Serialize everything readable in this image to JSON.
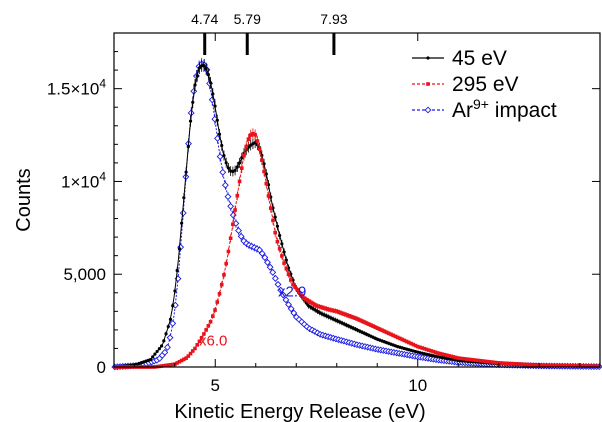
{
  "chart_data": {
    "type": "line",
    "xlabel": "Kinetic Energy Release (eV)",
    "ylabel": "Counts",
    "xlim": [
      2.5,
      14.5
    ],
    "ylim": [
      0,
      18000
    ],
    "xticks": [
      {
        "value": 5,
        "label": "5"
      },
      {
        "value": 10,
        "label": "10"
      }
    ],
    "yticks": [
      {
        "value": 0,
        "label": "0"
      },
      {
        "value": 5000,
        "label": "5,000"
      },
      {
        "value": 10000,
        "label": "1×10",
        "exp": "4"
      },
      {
        "value": 15000,
        "label": "1.5×10",
        "exp": "4"
      }
    ],
    "top_markers": [
      {
        "value": 4.74,
        "label": "4.74"
      },
      {
        "value": 5.79,
        "label": "5.79"
      },
      {
        "value": 7.93,
        "label": "7.93"
      }
    ],
    "series": [
      {
        "name": "45 eV",
        "color": "#000000",
        "marker": "filled-dot",
        "x": [
          2.5,
          3.0,
          3.4,
          3.7,
          3.9,
          4.0,
          4.1,
          4.2,
          4.3,
          4.4,
          4.5,
          4.6,
          4.7,
          4.8,
          4.9,
          5.0,
          5.1,
          5.2,
          5.3,
          5.4,
          5.5,
          5.6,
          5.7,
          5.8,
          5.9,
          6.0,
          6.1,
          6.2,
          6.3,
          6.4,
          6.6,
          6.8,
          7.0,
          7.3,
          7.6,
          8.0,
          8.5,
          9.0,
          9.5,
          10.0,
          10.5,
          11.0,
          12.0,
          13.0,
          14.5
        ],
        "y": [
          0,
          100,
          400,
          1200,
          2600,
          4000,
          6000,
          8500,
          11000,
          13500,
          15200,
          16100,
          16300,
          16000,
          15200,
          14000,
          12600,
          11500,
          10800,
          10500,
          10600,
          11000,
          11500,
          11800,
          12000,
          12100,
          11800,
          11000,
          10000,
          8800,
          7000,
          5400,
          4200,
          3300,
          2900,
          2500,
          2000,
          1500,
          1100,
          800,
          550,
          350,
          180,
          90,
          30
        ]
      },
      {
        "name": "295 eV",
        "color": "#e8141b",
        "marker": "filled-square",
        "x": [
          2.5,
          3.5,
          4.0,
          4.3,
          4.5,
          4.7,
          4.9,
          5.0,
          5.1,
          5.2,
          5.3,
          5.4,
          5.5,
          5.6,
          5.7,
          5.8,
          5.9,
          6.0,
          6.1,
          6.2,
          6.3,
          6.4,
          6.5,
          6.7,
          6.9,
          7.2,
          7.5,
          7.8,
          8.0,
          8.5,
          9.0,
          9.5,
          10.0,
          10.5,
          11.0,
          12.0,
          13.0,
          14.5
        ],
        "y": [
          0,
          0,
          150,
          500,
          1000,
          1700,
          2500,
          3100,
          3900,
          4800,
          5900,
          7200,
          8600,
          10000,
          11300,
          12200,
          12600,
          12500,
          11700,
          10600,
          9400,
          8200,
          7000,
          5600,
          4500,
          3700,
          3300,
          3100,
          3000,
          2600,
          2100,
          1600,
          1100,
          750,
          480,
          220,
          100,
          40
        ]
      },
      {
        "name": "Ar",
        "name_sup": "9+",
        "name_suffix": " impact",
        "color": "#1a1ae6",
        "marker": "open-diamond",
        "x": [
          2.5,
          3.2,
          3.6,
          3.8,
          3.9,
          4.0,
          4.1,
          4.2,
          4.3,
          4.4,
          4.5,
          4.6,
          4.7,
          4.8,
          4.9,
          5.0,
          5.1,
          5.2,
          5.3,
          5.4,
          5.5,
          5.6,
          5.7,
          5.8,
          5.9,
          6.0,
          6.1,
          6.2,
          6.4,
          6.6,
          6.8,
          7.0,
          7.3,
          7.6,
          8.0,
          8.5,
          9.0,
          9.5,
          10.0,
          10.5,
          11.0,
          12.0,
          13.0,
          14.5
        ],
        "y": [
          0,
          100,
          400,
          900,
          1700,
          3000,
          5200,
          8000,
          11000,
          13600,
          15400,
          16200,
          16400,
          16000,
          14800,
          13200,
          11600,
          10300,
          9300,
          8500,
          7800,
          7200,
          6800,
          6600,
          6500,
          6400,
          6300,
          6000,
          5200,
          4200,
          3400,
          2700,
          2100,
          1750,
          1500,
          1200,
          950,
          750,
          550,
          380,
          250,
          120,
          60,
          20
        ]
      }
    ],
    "annotations": [
      {
        "text": "x6.0",
        "x": 4.6,
        "y": 1150,
        "color": "#e8141b"
      },
      {
        "text": "x2.9",
        "x": 6.55,
        "y": 3800,
        "color": "#1a1ae6"
      }
    ],
    "legend_position": "top-right",
    "grid": false
  }
}
